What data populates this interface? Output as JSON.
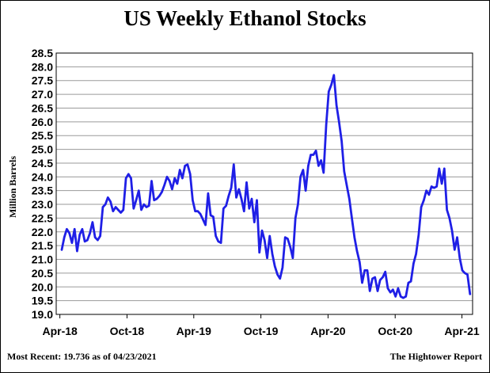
{
  "chart_data": {
    "type": "line",
    "title": "US Weekly Ethanol Stocks",
    "ylabel": "Million Barrels",
    "xlabel": "",
    "ylim": [
      19.0,
      28.5
    ],
    "yticks": [
      "28.5",
      "28.0",
      "27.5",
      "27.0",
      "26.5",
      "26.0",
      "25.5",
      "25.0",
      "24.5",
      "24.0",
      "23.5",
      "23.0",
      "22.5",
      "22.0",
      "21.5",
      "21.0",
      "20.5",
      "20.0",
      "19.5",
      "19.0"
    ],
    "xticks": [
      {
        "label": "Apr-18",
        "date": "2018-04-01"
      },
      {
        "label": "Oct-18",
        "date": "2018-10-01"
      },
      {
        "label": "Apr-19",
        "date": "2019-04-01"
      },
      {
        "label": "Oct-19",
        "date": "2019-10-01"
      },
      {
        "label": "Apr-20",
        "date": "2020-04-01"
      },
      {
        "label": "Oct-20",
        "date": "2020-10-01"
      },
      {
        "label": "Apr-21",
        "date": "2021-04-01"
      }
    ],
    "grid": "horizontal",
    "line_color": "#1f1fe6",
    "series": [
      {
        "values": [
          [
            "2018-04-06",
            21.35
          ],
          [
            "2018-04-13",
            21.8
          ],
          [
            "2018-04-20",
            22.1
          ],
          [
            "2018-04-27",
            21.95
          ],
          [
            "2018-05-04",
            21.6
          ],
          [
            "2018-05-11",
            22.1
          ],
          [
            "2018-05-18",
            21.3
          ],
          [
            "2018-05-25",
            21.9
          ],
          [
            "2018-06-01",
            22.1
          ],
          [
            "2018-06-08",
            21.65
          ],
          [
            "2018-06-15",
            21.7
          ],
          [
            "2018-06-22",
            21.95
          ],
          [
            "2018-06-29",
            22.35
          ],
          [
            "2018-07-06",
            21.8
          ],
          [
            "2018-07-13",
            21.7
          ],
          [
            "2018-07-20",
            21.85
          ],
          [
            "2018-07-27",
            22.9
          ],
          [
            "2018-08-03",
            23.0
          ],
          [
            "2018-08-10",
            23.25
          ],
          [
            "2018-08-17",
            23.1
          ],
          [
            "2018-08-24",
            22.75
          ],
          [
            "2018-08-31",
            22.9
          ],
          [
            "2018-09-07",
            22.8
          ],
          [
            "2018-09-14",
            22.7
          ],
          [
            "2018-09-21",
            22.8
          ],
          [
            "2018-09-28",
            23.95
          ],
          [
            "2018-10-05",
            24.1
          ],
          [
            "2018-10-12",
            23.95
          ],
          [
            "2018-10-19",
            22.85
          ],
          [
            "2018-10-26",
            23.15
          ],
          [
            "2018-11-02",
            23.5
          ],
          [
            "2018-11-09",
            22.8
          ],
          [
            "2018-11-16",
            23.0
          ],
          [
            "2018-11-23",
            22.9
          ],
          [
            "2018-11-30",
            22.95
          ],
          [
            "2018-12-07",
            23.85
          ],
          [
            "2018-12-14",
            23.15
          ],
          [
            "2018-12-21",
            23.2
          ],
          [
            "2018-12-28",
            23.3
          ],
          [
            "2019-01-04",
            23.45
          ],
          [
            "2019-01-11",
            23.7
          ],
          [
            "2019-01-18",
            24.0
          ],
          [
            "2019-01-25",
            23.85
          ],
          [
            "2019-02-01",
            23.55
          ],
          [
            "2019-02-08",
            23.95
          ],
          [
            "2019-02-15",
            23.75
          ],
          [
            "2019-02-22",
            24.25
          ],
          [
            "2019-03-01",
            23.95
          ],
          [
            "2019-03-08",
            24.4
          ],
          [
            "2019-03-15",
            24.45
          ],
          [
            "2019-03-22",
            24.1
          ],
          [
            "2019-03-29",
            23.15
          ],
          [
            "2019-04-05",
            22.75
          ],
          [
            "2019-04-12",
            22.75
          ],
          [
            "2019-04-19",
            22.65
          ],
          [
            "2019-04-26",
            22.45
          ],
          [
            "2019-05-03",
            22.25
          ],
          [
            "2019-05-10",
            23.4
          ],
          [
            "2019-05-17",
            22.6
          ],
          [
            "2019-05-24",
            22.55
          ],
          [
            "2019-05-31",
            21.85
          ],
          [
            "2019-06-07",
            21.65
          ],
          [
            "2019-06-14",
            21.6
          ],
          [
            "2019-06-21",
            22.85
          ],
          [
            "2019-06-28",
            22.95
          ],
          [
            "2019-07-05",
            23.3
          ],
          [
            "2019-07-12",
            23.6
          ],
          [
            "2019-07-19",
            24.45
          ],
          [
            "2019-07-26",
            23.25
          ],
          [
            "2019-08-02",
            23.55
          ],
          [
            "2019-08-09",
            23.2
          ],
          [
            "2019-08-16",
            22.75
          ],
          [
            "2019-08-23",
            23.8
          ],
          [
            "2019-08-30",
            22.85
          ],
          [
            "2019-09-06",
            23.2
          ],
          [
            "2019-09-13",
            22.35
          ],
          [
            "2019-09-20",
            23.15
          ],
          [
            "2019-09-27",
            21.25
          ],
          [
            "2019-10-04",
            22.05
          ],
          [
            "2019-10-11",
            21.7
          ],
          [
            "2019-10-18",
            21.05
          ],
          [
            "2019-10-25",
            21.85
          ],
          [
            "2019-11-01",
            21.2
          ],
          [
            "2019-11-08",
            20.75
          ],
          [
            "2019-11-15",
            20.45
          ],
          [
            "2019-11-22",
            20.3
          ],
          [
            "2019-11-29",
            20.7
          ],
          [
            "2019-12-06",
            21.8
          ],
          [
            "2019-12-13",
            21.75
          ],
          [
            "2019-12-20",
            21.45
          ],
          [
            "2019-12-27",
            21.05
          ],
          [
            "2020-01-03",
            22.5
          ],
          [
            "2020-01-10",
            23.0
          ],
          [
            "2020-01-17",
            24.0
          ],
          [
            "2020-01-24",
            24.25
          ],
          [
            "2020-01-31",
            23.5
          ],
          [
            "2020-02-07",
            24.4
          ],
          [
            "2020-02-14",
            24.8
          ],
          [
            "2020-02-21",
            24.8
          ],
          [
            "2020-02-28",
            24.95
          ],
          [
            "2020-03-06",
            24.4
          ],
          [
            "2020-03-13",
            24.6
          ],
          [
            "2020-03-20",
            24.15
          ],
          [
            "2020-03-27",
            25.9
          ],
          [
            "2020-04-03",
            27.1
          ],
          [
            "2020-04-10",
            27.35
          ],
          [
            "2020-04-17",
            27.7
          ],
          [
            "2020-04-24",
            26.6
          ],
          [
            "2020-05-01",
            26.0
          ],
          [
            "2020-05-08",
            25.3
          ],
          [
            "2020-05-15",
            24.2
          ],
          [
            "2020-05-22",
            23.7
          ],
          [
            "2020-05-29",
            23.2
          ],
          [
            "2020-06-05",
            22.5
          ],
          [
            "2020-06-12",
            21.8
          ],
          [
            "2020-06-19",
            21.3
          ],
          [
            "2020-06-26",
            20.9
          ],
          [
            "2020-07-03",
            20.15
          ],
          [
            "2020-07-10",
            20.6
          ],
          [
            "2020-07-17",
            20.6
          ],
          [
            "2020-07-24",
            19.85
          ],
          [
            "2020-07-31",
            20.3
          ],
          [
            "2020-08-07",
            20.35
          ],
          [
            "2020-08-14",
            19.85
          ],
          [
            "2020-08-21",
            20.25
          ],
          [
            "2020-08-28",
            20.35
          ],
          [
            "2020-09-04",
            20.55
          ],
          [
            "2020-09-11",
            19.95
          ],
          [
            "2020-09-18",
            19.8
          ],
          [
            "2020-09-25",
            19.9
          ],
          [
            "2020-10-02",
            19.65
          ],
          [
            "2020-10-09",
            19.95
          ],
          [
            "2020-10-16",
            19.65
          ],
          [
            "2020-10-23",
            19.6
          ],
          [
            "2020-10-30",
            19.65
          ],
          [
            "2020-11-06",
            20.15
          ],
          [
            "2020-11-13",
            20.2
          ],
          [
            "2020-11-20",
            20.85
          ],
          [
            "2020-11-27",
            21.2
          ],
          [
            "2020-12-04",
            21.9
          ],
          [
            "2020-12-11",
            22.9
          ],
          [
            "2020-12-18",
            23.15
          ],
          [
            "2020-12-25",
            23.5
          ],
          [
            "2021-01-01",
            23.35
          ],
          [
            "2021-01-08",
            23.65
          ],
          [
            "2021-01-15",
            23.6
          ],
          [
            "2021-01-22",
            23.65
          ],
          [
            "2021-01-29",
            24.3
          ],
          [
            "2021-02-05",
            23.75
          ],
          [
            "2021-02-12",
            24.3
          ],
          [
            "2021-02-19",
            22.8
          ],
          [
            "2021-02-26",
            22.5
          ],
          [
            "2021-03-05",
            22.05
          ],
          [
            "2021-03-12",
            21.35
          ],
          [
            "2021-03-19",
            21.8
          ],
          [
            "2021-03-26",
            21.05
          ],
          [
            "2021-04-02",
            20.6
          ],
          [
            "2021-04-09",
            20.5
          ],
          [
            "2021-04-16",
            20.45
          ],
          [
            "2021-04-23",
            19.736
          ]
        ]
      }
    ]
  },
  "footer": {
    "left": "Most Recent: 19.736 as of 04/23/2021",
    "right": "The Hightower Report"
  }
}
